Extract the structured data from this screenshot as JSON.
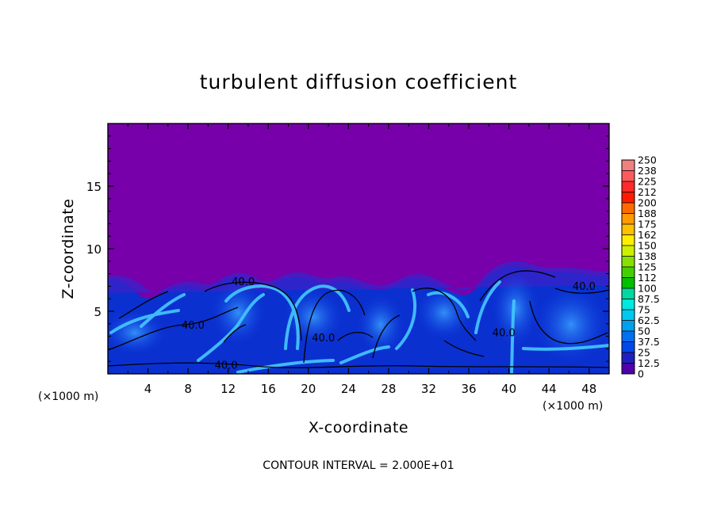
{
  "chart_data": {
    "type": "heatmap",
    "title": "turbulent diffusion coefficient",
    "xlabel": "X-coordinate",
    "ylabel": "Z-coordinate",
    "x_unit_label": "(×1000 m)",
    "z_unit_label": "(×1000 m)",
    "xlim": [
      0,
      50
    ],
    "ylim": [
      0,
      20
    ],
    "x_ticks": [
      4,
      8,
      12,
      16,
      20,
      24,
      28,
      32,
      36,
      40,
      44,
      48
    ],
    "y_ticks": [
      5,
      10,
      15
    ],
    "colorbar": {
      "levels": [
        "250",
        "238",
        "225",
        "212",
        "200",
        "188",
        "175",
        "162",
        "150",
        "138",
        "125",
        "112",
        "100",
        "87.5",
        "75",
        "62.5",
        "50",
        "37.5",
        "25",
        "12.5",
        "0"
      ],
      "colors": [
        "#f08080",
        "#ff5a5a",
        "#ff2a2a",
        "#ff1a00",
        "#ff6a00",
        "#ff9a00",
        "#ffc000",
        "#ffee00",
        "#ccf000",
        "#88e000",
        "#44d000",
        "#00c000",
        "#00d8a0",
        "#00e8e0",
        "#00c8f0",
        "#00a0f0",
        "#0070f0",
        "#0048e8",
        "#2020c0",
        "#5000a8"
      ]
    },
    "background_color": "#7700aa",
    "contour_interval": "CONTOUR INTERVAL = 2.000E+01",
    "contour_labels": [
      {
        "text": "40.0",
        "x": 13.5,
        "z": 7.1
      },
      {
        "text": "40.0",
        "x": 8.5,
        "z": 3.6
      },
      {
        "text": "40.0",
        "x": 21.5,
        "z": 2.6
      },
      {
        "text": "40.0",
        "x": 39.5,
        "z": 3.0
      },
      {
        "text": "40.0",
        "x": 47.5,
        "z": 6.7
      },
      {
        "text": "40.0",
        "x": 11.8,
        "z": 0.4
      }
    ],
    "approx_top_of_turbulent_layer_z": [
      7.5,
      6.2,
      7.0,
      7.3,
      6.6,
      7.2,
      6.5,
      7.6,
      6.3,
      8.8,
      8.2,
      7.5
    ]
  }
}
